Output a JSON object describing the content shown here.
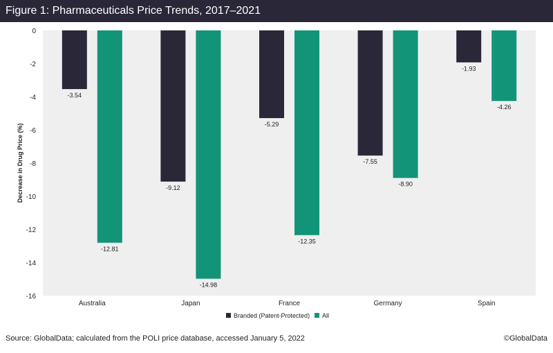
{
  "header": {
    "title": "Figure 1: Pharmaceuticals Price Trends, 2017–2021"
  },
  "footer": {
    "source": "Source: GlobalData; calculated from the POLI price database, accessed January 5, 2022",
    "copyright": "©GlobalData"
  },
  "colors": {
    "branded": "#2a2838",
    "all": "#129479",
    "plot_bg": "#efefef",
    "header_bg": "#2a2838"
  },
  "chart_data": {
    "type": "bar",
    "title": "",
    "xlabel": "",
    "ylabel": "Decrease in Drug Price (%)",
    "categories": [
      "Australia",
      "Japan",
      "France",
      "Germany",
      "Spain"
    ],
    "series": [
      {
        "name": "Branded (Patent-Protected)",
        "values": [
          -3.54,
          -9.12,
          -5.29,
          -7.55,
          -1.93
        ],
        "labels": [
          "-3.54",
          "-9.12",
          "-5.29",
          "-7.55",
          "-1.93"
        ]
      },
      {
        "name": "All",
        "values": [
          -12.81,
          -14.98,
          -12.35,
          -8.9,
          -4.26
        ],
        "labels": [
          "-12.81",
          "-14.98",
          "-12.35",
          "-8.90",
          "-4.26"
        ]
      }
    ],
    "ylim": [
      -16,
      0
    ],
    "yticks": [
      0,
      -2,
      -4,
      -6,
      -8,
      -10,
      -12,
      -14,
      -16
    ],
    "grid": false,
    "legend": "bottom-center"
  }
}
